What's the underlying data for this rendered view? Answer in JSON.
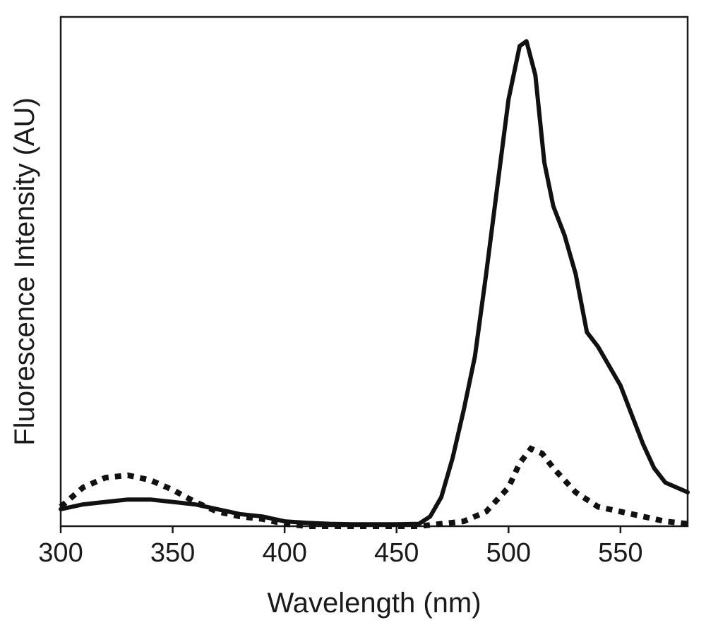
{
  "chart_data": {
    "type": "line",
    "title": "",
    "xlabel": "Wavelength (nm)",
    "ylabel": "Fluorescence Intensity (AU)",
    "xlim": [
      300,
      580
    ],
    "ylim": [
      0,
      1.05
    ],
    "x_ticks": [
      300,
      350,
      400,
      450,
      500,
      550
    ],
    "y_ticks_shown": false,
    "grid": false,
    "legend": "none",
    "series": [
      {
        "style": "solid",
        "color": "#111111",
        "points": [
          [
            300,
            0.035
          ],
          [
            310,
            0.045
          ],
          [
            320,
            0.05
          ],
          [
            330,
            0.055
          ],
          [
            340,
            0.055
          ],
          [
            350,
            0.05
          ],
          [
            360,
            0.045
          ],
          [
            370,
            0.035
          ],
          [
            380,
            0.025
          ],
          [
            390,
            0.02
          ],
          [
            400,
            0.01
          ],
          [
            410,
            0.007
          ],
          [
            420,
            0.005
          ],
          [
            430,
            0.004
          ],
          [
            440,
            0.004
          ],
          [
            450,
            0.004
          ],
          [
            460,
            0.005
          ],
          [
            465,
            0.02
          ],
          [
            470,
            0.06
          ],
          [
            475,
            0.14
          ],
          [
            480,
            0.24
          ],
          [
            485,
            0.35
          ],
          [
            490,
            0.52
          ],
          [
            495,
            0.7
          ],
          [
            500,
            0.88
          ],
          [
            505,
            0.99
          ],
          [
            508,
            1.0
          ],
          [
            512,
            0.93
          ],
          [
            516,
            0.75
          ],
          [
            520,
            0.66
          ],
          [
            525,
            0.6
          ],
          [
            530,
            0.52
          ],
          [
            535,
            0.4
          ],
          [
            540,
            0.37
          ],
          [
            545,
            0.33
          ],
          [
            550,
            0.29
          ],
          [
            555,
            0.23
          ],
          [
            560,
            0.17
          ],
          [
            565,
            0.12
          ],
          [
            570,
            0.09
          ],
          [
            575,
            0.08
          ],
          [
            580,
            0.07
          ]
        ]
      },
      {
        "style": "dotted",
        "color": "#111111",
        "points": [
          [
            300,
            0.04
          ],
          [
            310,
            0.08
          ],
          [
            320,
            0.1
          ],
          [
            330,
            0.105
          ],
          [
            340,
            0.095
          ],
          [
            350,
            0.075
          ],
          [
            360,
            0.05
          ],
          [
            370,
            0.03
          ],
          [
            380,
            0.02
          ],
          [
            390,
            0.015
          ],
          [
            400,
            0.005
          ],
          [
            410,
            0.0
          ],
          [
            420,
            0.0
          ],
          [
            430,
            0.0
          ],
          [
            440,
            0.0
          ],
          [
            450,
            0.0
          ],
          [
            460,
            0.0
          ],
          [
            470,
            0.005
          ],
          [
            480,
            0.01
          ],
          [
            490,
            0.03
          ],
          [
            500,
            0.08
          ],
          [
            505,
            0.13
          ],
          [
            510,
            0.16
          ],
          [
            515,
            0.15
          ],
          [
            520,
            0.12
          ],
          [
            530,
            0.07
          ],
          [
            540,
            0.04
          ],
          [
            550,
            0.03
          ],
          [
            560,
            0.02
          ],
          [
            570,
            0.01
          ],
          [
            580,
            0.005
          ]
        ]
      }
    ]
  }
}
